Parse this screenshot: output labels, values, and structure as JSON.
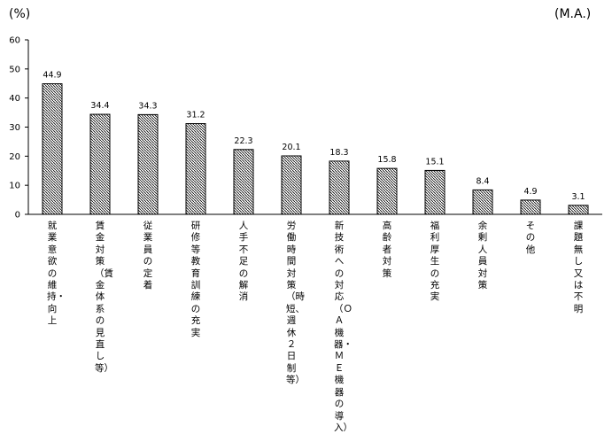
{
  "chart_data": {
    "type": "bar",
    "unit_left": "(%)",
    "unit_right": "(M.A.)",
    "ylim": [
      0,
      60
    ],
    "yticks": [
      0,
      10,
      20,
      30,
      40,
      50,
      60
    ],
    "grid": false,
    "categories": [
      "就業意欲の維持・向上",
      "賃金対策（賃金体系の見直し等）",
      "従業員の定着",
      "研修等教育訓練の充実",
      "人手不足の解消",
      "労働時間対策（時短、週休２日制等）",
      "新技術への対応（ＯＡ機器・ＭＥ機器の導入）",
      "高齢者対策",
      "福利厚生の充実",
      "余剰人員対策",
      "その他",
      "課題無し又は不明"
    ],
    "values": [
      44.9,
      34.4,
      34.3,
      31.2,
      22.3,
      20.1,
      18.3,
      15.8,
      15.1,
      8.4,
      4.9,
      3.1
    ],
    "value_labels": [
      "44.9",
      "34.4",
      "34.3",
      "31.2",
      "22.3",
      "20.1",
      "18.3",
      "15.8",
      "15.1",
      "8.4",
      "4.9",
      "3.1"
    ],
    "bar_fill": "#ffffff",
    "bar_hatch_color": "#000000"
  }
}
